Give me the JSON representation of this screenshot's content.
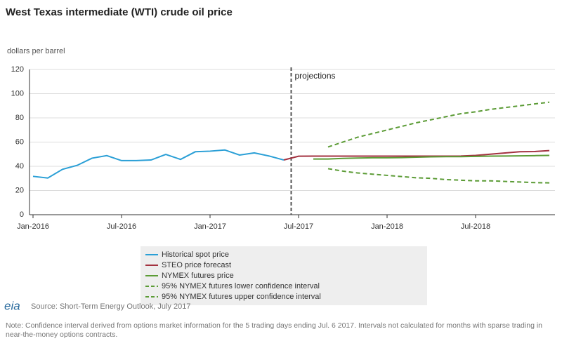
{
  "chart_data": {
    "type": "line",
    "title": "West Texas intermediate (WTI) crude oil price",
    "y_label": "dollars per barrel",
    "annotation": "projections",
    "source": "Source: Short-Term Energy Outlook, July 2017",
    "note": "Note: Confidence interval derived from options market information for the 5 trading days ending Jul. 6 2017. Intervals not calculated for months with sparse trading in near-the-money options contracts.",
    "logo": "eia",
    "categories": [
      "Jan-2016",
      null,
      null,
      null,
      null,
      null,
      "Jul-2016",
      null,
      null,
      null,
      null,
      null,
      "Jan-2017",
      null,
      null,
      null,
      null,
      null,
      "Jul-2017",
      null,
      null,
      null,
      null,
      null,
      "Jan-2018",
      null,
      null,
      null,
      null,
      null,
      "Jul-2018",
      null,
      null,
      null,
      null,
      null
    ],
    "ylim": [
      0,
      120
    ],
    "yticks": [
      0,
      20,
      40,
      60,
      80,
      100,
      120
    ],
    "grid": true,
    "series": [
      {
        "name": "Historical spot price",
        "color": "#2a9fd6",
        "dashed": false,
        "values": [
          31.7,
          30.3,
          37.5,
          40.8,
          46.7,
          48.8,
          44.7,
          44.7,
          45.2,
          49.8,
          45.7,
          52.0,
          52.5,
          53.5,
          49.3,
          51.1,
          48.5,
          45.2,
          null,
          null,
          null,
          null,
          null,
          null,
          null,
          null,
          null,
          null,
          null,
          null,
          null,
          null,
          null,
          null,
          null,
          null
        ]
      },
      {
        "name": "STEO price forecast",
        "color": "#a33240",
        "dashed": false,
        "values": [
          null,
          null,
          null,
          null,
          null,
          null,
          null,
          null,
          null,
          null,
          null,
          null,
          null,
          null,
          null,
          null,
          null,
          45.2,
          48.3,
          48.4,
          48.4,
          48.4,
          48.4,
          48.4,
          48.4,
          48.4,
          48.4,
          48.4,
          48.4,
          48.5,
          49.0,
          50.0,
          51.0,
          52.0,
          52.2,
          53.0
        ]
      },
      {
        "name": "NYMEX futures price",
        "color": "#5b9b35",
        "dashed": false,
        "values": [
          null,
          null,
          null,
          null,
          null,
          null,
          null,
          null,
          null,
          null,
          null,
          null,
          null,
          null,
          null,
          null,
          null,
          null,
          null,
          46.0,
          46.0,
          46.5,
          46.8,
          47.0,
          47.0,
          47.2,
          47.5,
          47.8,
          48.0,
          48.0,
          48.2,
          48.4,
          48.5,
          48.6,
          48.8,
          49.0
        ]
      },
      {
        "name": "95% NYMEX futures lower confidence interval",
        "color": "#5b9b35",
        "dashed": true,
        "values": [
          null,
          null,
          null,
          null,
          null,
          null,
          null,
          null,
          null,
          null,
          null,
          null,
          null,
          null,
          null,
          null,
          null,
          null,
          null,
          null,
          38.0,
          36.0,
          34.5,
          33.5,
          32.5,
          31.5,
          30.5,
          30.0,
          29.0,
          28.5,
          28.0,
          28.0,
          27.5,
          27.0,
          26.5,
          26.3
        ]
      },
      {
        "name": "95% NYMEX futures upper confidence interval",
        "color": "#5b9b35",
        "dashed": true,
        "values": [
          null,
          null,
          null,
          null,
          null,
          null,
          null,
          null,
          null,
          null,
          null,
          null,
          null,
          null,
          null,
          null,
          null,
          null,
          null,
          null,
          56.0,
          60.0,
          64.0,
          67.0,
          70.0,
          73.0,
          76.0,
          78.5,
          81.0,
          83.5,
          85.0,
          87.0,
          88.5,
          90.0,
          91.5,
          93.0
        ]
      }
    ]
  }
}
